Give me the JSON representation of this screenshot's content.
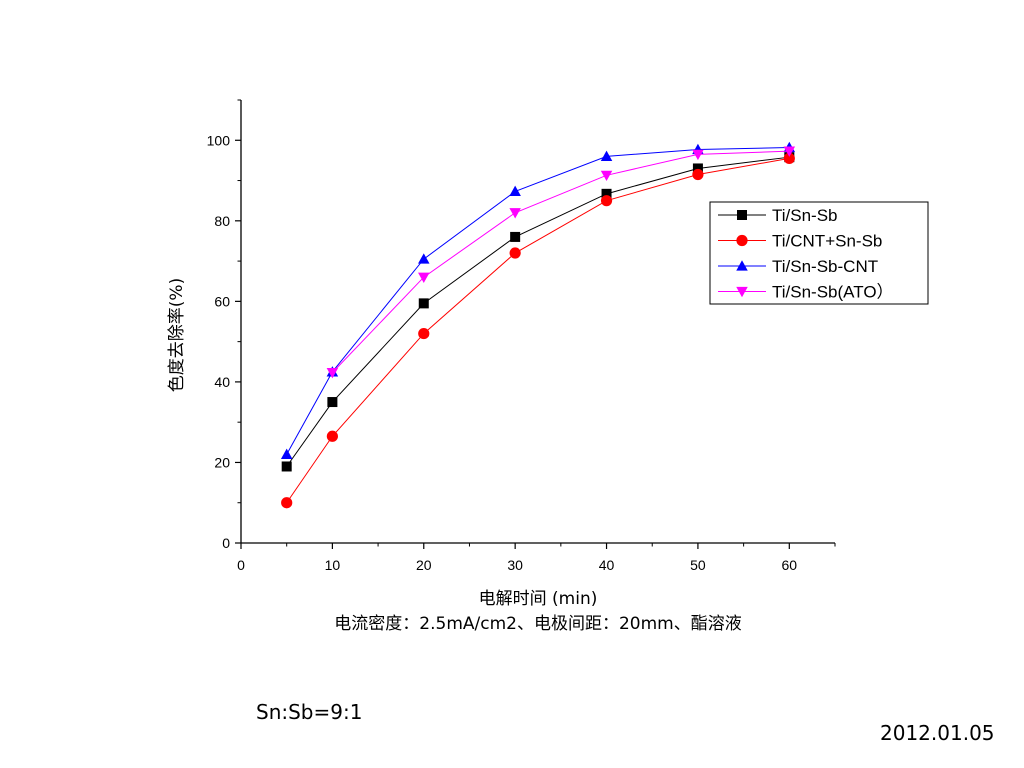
{
  "chart_data": {
    "type": "line",
    "xlabel": "电解时间 (min)",
    "subtitle": "电流密度：2.5mA/cm2、电极间距：20mm、酯溶液",
    "ylabel": "色度去除率(%)",
    "xlim": [
      0,
      65
    ],
    "ylim": [
      0,
      110
    ],
    "xticks": [
      0,
      10,
      20,
      30,
      40,
      50,
      60
    ],
    "yticks": [
      0,
      20,
      40,
      60,
      80,
      100
    ],
    "grid": false,
    "legend_position": "top-right",
    "x": [
      5,
      10,
      20,
      30,
      40,
      50,
      60
    ],
    "series": [
      {
        "name": "Ti/Sn-Sb",
        "marker": "square",
        "color": "#000000",
        "values": [
          19,
          35,
          59.5,
          76,
          86.7,
          93,
          95.8
        ]
      },
      {
        "name": "Ti/CNT+Sn-Sb",
        "marker": "circle",
        "color": "#ff0000",
        "values": [
          10,
          26.5,
          52,
          72,
          85,
          91.5,
          95.5
        ]
      },
      {
        "name": "Ti/Sn-Sb-CNT",
        "marker": "triangle-up",
        "color": "#0000ff",
        "values": [
          22,
          42.5,
          70.5,
          87.3,
          96,
          97.7,
          98.2
        ]
      },
      {
        "name": "Ti/Sn-Sb(ATO）",
        "marker": "triangle-down",
        "color": "#ff00ff",
        "values": [
          null,
          42.3,
          66,
          82,
          91.3,
          96.5,
          97.3
        ]
      }
    ]
  },
  "notes": {
    "ratio": "Sn:Sb=9:1",
    "date": "2012.01.05"
  }
}
